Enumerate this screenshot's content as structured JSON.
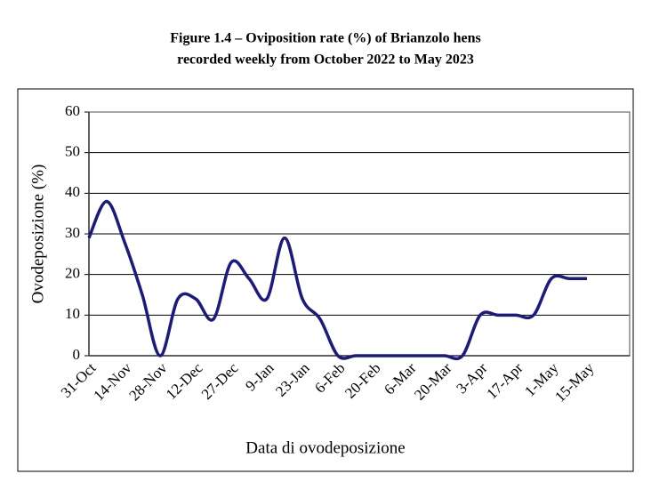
{
  "chart_data": {
    "type": "line",
    "title": [
      "Figure 1.4 – Oviposition rate (%) of Brianzolo hens",
      "recorded weekly from October 2022 to May 2023"
    ],
    "x_label": "Data di ovodeposizione",
    "y_label": "Ovodeposizione (%)",
    "categories": [
      "31-Oct",
      null,
      "14-Nov",
      null,
      "28-Nov",
      null,
      "12-Dec",
      null,
      "27-Dec",
      null,
      "9-Jan",
      null,
      "23-Jan",
      null,
      "6-Feb",
      null,
      "20-Feb",
      null,
      "6-Mar",
      null,
      "20-Mar",
      null,
      "3-Apr",
      null,
      "17-Apr",
      null,
      "1-May",
      null,
      "15-May"
    ],
    "series": [
      {
        "name": "Ovodeposizione",
        "color": "#1a1a80",
        "values": [
          29,
          38,
          28,
          15,
          0,
          14,
          14,
          9,
          23,
          19,
          14,
          29,
          14,
          9,
          0,
          0,
          0,
          0,
          0,
          0,
          0,
          0,
          10,
          10,
          10,
          10,
          19,
          19,
          19
        ]
      }
    ],
    "ylim": [
      0,
      60
    ],
    "yticks": [
      0,
      10,
      20,
      30,
      40,
      50,
      60
    ],
    "grid": true
  }
}
